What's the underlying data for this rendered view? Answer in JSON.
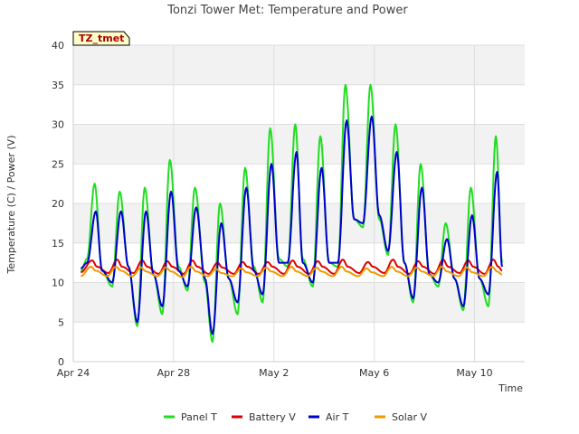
{
  "chart_data": {
    "type": "line",
    "title": "Tonzi Tower Met: Temperature and Power",
    "xlabel": "Time",
    "ylabel": "Temperature (C) / Power (V)",
    "tag": "TZ_tmet",
    "ylim": [
      0,
      40
    ],
    "yticks": [
      "0",
      "5",
      "10",
      "15",
      "20",
      "25",
      "30",
      "35",
      "40"
    ],
    "xlim": [
      0,
      18
    ],
    "xticks": [
      {
        "x": 0,
        "label": "Apr 24"
      },
      {
        "x": 4,
        "label": "Apr 28"
      },
      {
        "x": 8,
        "label": "May 2"
      },
      {
        "x": 12,
        "label": "May 6"
      },
      {
        "x": 16,
        "label": "May 10"
      }
    ],
    "x_unit": "days since Apr 24",
    "grid": true,
    "legend_position": "bottom",
    "daily_peaks": {
      "days": [
        0.85,
        1.85,
        2.85,
        3.85,
        4.85,
        5.85,
        6.85,
        7.85,
        8.85,
        9.85,
        10.85,
        11.85,
        12.85,
        13.85,
        14.85,
        15.85,
        16.85
      ],
      "panel_max": [
        22.5,
        21.5,
        22.0,
        25.5,
        22.0,
        20.0,
        24.5,
        29.5,
        30.0,
        28.5,
        35.0,
        35.0,
        30.0,
        25.0,
        17.5,
        22.0,
        28.5
      ],
      "panel_min": [
        11.5,
        9.5,
        4.5,
        6.0,
        9.0,
        2.5,
        6.0,
        7.5,
        12.0,
        9.5,
        12.0,
        17.0,
        13.5,
        7.5,
        9.5,
        6.5,
        7.0
      ],
      "air_max": [
        19.0,
        19.0,
        19.0,
        21.5,
        19.5,
        17.5,
        22.0,
        25.0,
        26.5,
        24.5,
        30.5,
        31.0,
        26.5,
        22.0,
        15.5,
        18.5,
        24.0
      ],
      "air_min": [
        11.5,
        10.0,
        5.0,
        7.0,
        9.5,
        3.5,
        7.5,
        8.5,
        12.5,
        10.0,
        12.5,
        17.5,
        14.0,
        8.0,
        10.0,
        7.0,
        8.5
      ]
    },
    "series": [
      {
        "name": "Panel T",
        "color": "#22dd22",
        "x": [
          0.3,
          0.55,
          0.85,
          1.15,
          1.55,
          1.85,
          2.2,
          2.55,
          2.85,
          3.2,
          3.55,
          3.85,
          4.2,
          4.55,
          4.85,
          5.25,
          5.55,
          5.85,
          6.2,
          6.55,
          6.85,
          7.2,
          7.55,
          7.85,
          8.2,
          8.55,
          8.85,
          9.15,
          9.55,
          9.85,
          10.2,
          10.55,
          10.85,
          11.2,
          11.55,
          11.85,
          12.2,
          12.55,
          12.85,
          13.2,
          13.55,
          13.85,
          14.2,
          14.55,
          14.85,
          15.2,
          15.55,
          15.85,
          16.2,
          16.55,
          16.85,
          17.1
        ],
        "y": [
          11.5,
          13.0,
          22.5,
          11.5,
          9.5,
          21.5,
          12.0,
          4.5,
          22.0,
          11.0,
          6.0,
          25.5,
          12.0,
          9.0,
          22.0,
          10.0,
          2.5,
          20.0,
          10.5,
          6.0,
          24.5,
          12.0,
          7.5,
          29.5,
          13.0,
          12.0,
          30.0,
          13.0,
          9.5,
          28.5,
          12.5,
          12.0,
          35.0,
          18.0,
          17.0,
          35.0,
          18.0,
          13.5,
          30.0,
          12.5,
          7.5,
          25.0,
          11.0,
          9.5,
          17.5,
          10.5,
          6.5,
          22.0,
          10.5,
          7.0,
          28.5,
          12.5
        ]
      },
      {
        "name": "Battery V",
        "color": "#dd0000",
        "x": [
          0.3,
          0.75,
          0.95,
          1.4,
          1.75,
          1.95,
          2.4,
          2.75,
          2.95,
          3.4,
          3.75,
          3.95,
          4.4,
          4.75,
          4.95,
          5.4,
          5.75,
          5.95,
          6.4,
          6.75,
          6.95,
          7.4,
          7.75,
          7.95,
          8.4,
          8.75,
          8.95,
          9.4,
          9.75,
          9.95,
          10.4,
          10.75,
          10.95,
          11.4,
          11.75,
          11.95,
          12.4,
          12.75,
          12.95,
          13.4,
          13.75,
          13.95,
          14.4,
          14.75,
          14.95,
          15.4,
          15.75,
          15.95,
          16.4,
          16.75,
          16.95,
          17.1
        ],
        "y": [
          11.3,
          12.8,
          12.0,
          11.2,
          12.9,
          12.0,
          11.2,
          12.8,
          12.0,
          11.1,
          12.7,
          12.0,
          11.1,
          12.8,
          12.0,
          11.1,
          12.5,
          11.9,
          11.1,
          12.6,
          12.0,
          11.1,
          12.6,
          12.0,
          11.1,
          12.8,
          12.0,
          11.1,
          12.7,
          12.0,
          11.1,
          12.9,
          12.0,
          11.2,
          12.6,
          12.0,
          11.2,
          12.9,
          12.0,
          11.1,
          12.7,
          12.0,
          11.1,
          12.9,
          12.0,
          11.2,
          12.8,
          12.0,
          11.1,
          12.9,
          12.0,
          11.5
        ]
      },
      {
        "name": "Air T",
        "color": "#0000cc",
        "x": [
          0.3,
          0.55,
          0.9,
          1.15,
          1.55,
          1.9,
          2.2,
          2.55,
          2.9,
          3.2,
          3.55,
          3.9,
          4.2,
          4.55,
          4.9,
          5.25,
          5.55,
          5.9,
          6.2,
          6.55,
          6.9,
          7.2,
          7.55,
          7.9,
          8.2,
          8.55,
          8.9,
          9.15,
          9.55,
          9.9,
          10.2,
          10.55,
          10.9,
          11.2,
          11.55,
          11.9,
          12.2,
          12.55,
          12.9,
          13.2,
          13.55,
          13.9,
          14.2,
          14.55,
          14.9,
          15.2,
          15.55,
          15.9,
          16.2,
          16.55,
          16.9,
          17.1
        ],
        "y": [
          11.8,
          12.5,
          19.0,
          11.5,
          10.0,
          19.0,
          12.0,
          5.0,
          19.0,
          11.0,
          7.0,
          21.5,
          11.5,
          9.5,
          19.5,
          10.5,
          3.5,
          17.5,
          10.5,
          7.5,
          22.0,
          11.5,
          8.5,
          25.0,
          12.5,
          12.5,
          26.5,
          12.5,
          10.0,
          24.5,
          12.5,
          12.5,
          30.5,
          18.0,
          17.5,
          31.0,
          18.5,
          14.0,
          26.5,
          12.5,
          8.0,
          22.0,
          11.0,
          10.0,
          15.5,
          10.5,
          7.0,
          18.5,
          10.5,
          8.5,
          24.0,
          12.0
        ]
      },
      {
        "name": "Solar V",
        "color": "#ee9900",
        "x": [
          0.3,
          0.7,
          0.9,
          1.35,
          1.7,
          1.9,
          2.35,
          2.7,
          2.9,
          3.35,
          3.7,
          3.9,
          4.35,
          4.7,
          4.9,
          5.35,
          5.7,
          5.9,
          6.35,
          6.7,
          6.9,
          7.35,
          7.7,
          7.9,
          8.35,
          8.7,
          8.9,
          9.35,
          9.7,
          9.9,
          10.35,
          10.7,
          10.9,
          11.35,
          11.7,
          11.9,
          12.35,
          12.7,
          12.9,
          13.35,
          13.7,
          13.9,
          14.35,
          14.7,
          14.9,
          15.35,
          15.7,
          15.9,
          16.35,
          16.7,
          16.9,
          17.1
        ],
        "y": [
          10.8,
          12.0,
          11.5,
          10.8,
          12.0,
          11.5,
          10.8,
          11.9,
          11.4,
          10.8,
          11.9,
          11.4,
          10.7,
          12.0,
          11.4,
          10.8,
          11.7,
          11.2,
          10.8,
          11.8,
          11.3,
          10.8,
          11.9,
          11.4,
          10.8,
          12.0,
          11.4,
          10.8,
          11.9,
          11.4,
          10.8,
          12.0,
          11.4,
          10.8,
          11.8,
          11.3,
          10.8,
          12.0,
          11.4,
          10.8,
          11.9,
          11.4,
          10.8,
          12.0,
          11.4,
          10.8,
          11.9,
          11.3,
          10.8,
          12.0,
          11.4,
          11.0
        ]
      }
    ]
  }
}
